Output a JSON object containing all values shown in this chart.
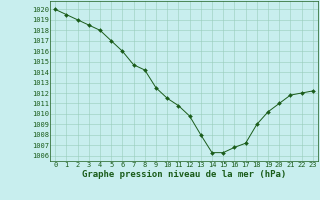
{
  "x": [
    0,
    1,
    2,
    3,
    4,
    5,
    6,
    7,
    8,
    9,
    10,
    11,
    12,
    13,
    14,
    15,
    16,
    17,
    18,
    19,
    20,
    21,
    22,
    23
  ],
  "y": [
    1020.0,
    1019.5,
    1019.0,
    1018.5,
    1018.0,
    1017.0,
    1016.0,
    1014.7,
    1014.2,
    1012.5,
    1011.5,
    1010.8,
    1009.8,
    1008.0,
    1006.3,
    1006.3,
    1006.8,
    1007.2,
    1009.0,
    1010.2,
    1011.0,
    1011.8,
    1012.0,
    1012.2
  ],
  "line_color": "#1a5c1a",
  "marker": "D",
  "marker_size": 2.0,
  "bg_color": "#c8eeee",
  "grid_color": "#99ccbb",
  "ylabel_ticks": [
    1006,
    1007,
    1008,
    1009,
    1010,
    1011,
    1012,
    1013,
    1014,
    1015,
    1016,
    1017,
    1018,
    1019,
    1020
  ],
  "ylim": [
    1005.5,
    1020.8
  ],
  "xlim": [
    -0.5,
    23.5
  ],
  "xlabel": "Graphe pression niveau de la mer (hPa)",
  "xlabel_fontsize": 6.5,
  "tick_fontsize": 5.0,
  "xlabel_bold": true
}
